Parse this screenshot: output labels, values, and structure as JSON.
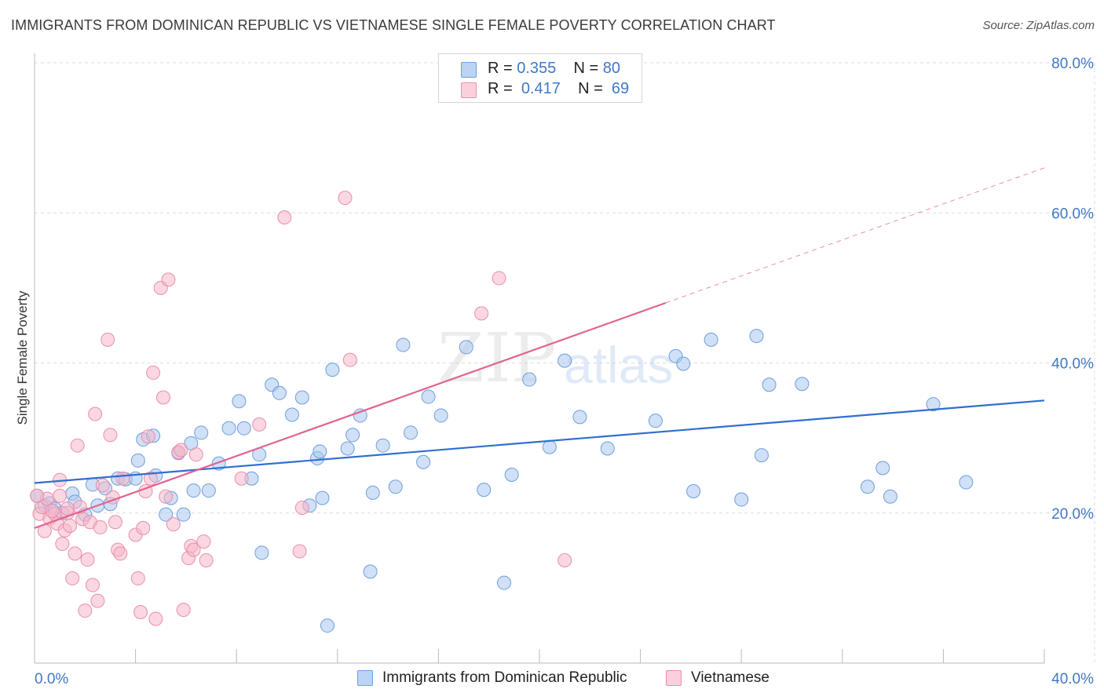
{
  "header": {
    "title": "IMMIGRANTS FROM DOMINICAN REPUBLIC VS VIETNAMESE SINGLE FEMALE POVERTY CORRELATION CHART",
    "source": "Source: ZipAtlas.com"
  },
  "watermark": {
    "zip": "ZIP",
    "atlas": "atlas"
  },
  "legend": {
    "series1": {
      "r_label": "R =",
      "r_value": "0.355",
      "n_label": "N =",
      "n_value": "80"
    },
    "series2": {
      "r_label": "R =",
      "r_value": "0.417",
      "n_label": "N =",
      "n_value": "69"
    }
  },
  "colors": {
    "blue_fill": "#a9c7ef",
    "blue_stroke": "#6d9fdc",
    "blue_line": "#2f6fcf",
    "pink_fill": "#f6b6c9",
    "pink_stroke": "#ea8fab",
    "pink_line": "#e0638f",
    "tick_text": "#3f78c8",
    "grid": "#dcdcdc"
  },
  "chart_data": {
    "type": "scatter",
    "title": "IMMIGRANTS FROM DOMINICAN REPUBLIC VS VIETNAMESE SINGLE FEMALE POVERTY CORRELATION CHART",
    "xlabel": "",
    "ylabel": "Single Female Poverty",
    "xlim": [
      0,
      40
    ],
    "ylim": [
      0,
      80
    ],
    "x_tick_labels": [
      "0.0%",
      "40.0%"
    ],
    "y_ticks": [
      20,
      40,
      60,
      80
    ],
    "y_tick_labels": [
      "20.0%",
      "40.0%",
      "60.0%",
      "80.0%"
    ],
    "grid": true,
    "legend_position": "top-center",
    "series": [
      {
        "name": "Immigrants from Dominican Republic",
        "color": "#a9c7ef",
        "trend": {
          "x": [
            0,
            40
          ],
          "y": [
            24.0,
            35.0
          ]
        },
        "points": [
          [
            0.1,
            22.3
          ],
          [
            0.4,
            21.0
          ],
          [
            0.6,
            21.3
          ],
          [
            0.8,
            20.6
          ],
          [
            1.1,
            20.0
          ],
          [
            1.5,
            22.6
          ],
          [
            1.6,
            21.5
          ],
          [
            2.0,
            19.8
          ],
          [
            2.3,
            23.8
          ],
          [
            2.5,
            21.0
          ],
          [
            2.8,
            23.3
          ],
          [
            3.0,
            21.2
          ],
          [
            3.3,
            24.6
          ],
          [
            3.6,
            24.5
          ],
          [
            4.0,
            24.6
          ],
          [
            4.1,
            27.0
          ],
          [
            4.3,
            29.8
          ],
          [
            4.7,
            30.3
          ],
          [
            4.8,
            25.0
          ],
          [
            5.2,
            19.8
          ],
          [
            5.4,
            22.0
          ],
          [
            5.7,
            28.0
          ],
          [
            5.9,
            19.8
          ],
          [
            6.2,
            29.3
          ],
          [
            6.3,
            23.0
          ],
          [
            6.6,
            30.7
          ],
          [
            6.9,
            23.0
          ],
          [
            7.3,
            26.6
          ],
          [
            7.7,
            31.3
          ],
          [
            8.1,
            34.9
          ],
          [
            8.3,
            31.3
          ],
          [
            8.6,
            24.6
          ],
          [
            8.9,
            27.8
          ],
          [
            9.0,
            14.7
          ],
          [
            9.4,
            37.1
          ],
          [
            9.7,
            36.0
          ],
          [
            10.2,
            33.1
          ],
          [
            10.6,
            35.4
          ],
          [
            10.9,
            21.0
          ],
          [
            11.2,
            27.3
          ],
          [
            11.3,
            28.2
          ],
          [
            11.4,
            22.0
          ],
          [
            11.6,
            5.0
          ],
          [
            11.8,
            39.1
          ],
          [
            12.4,
            28.6
          ],
          [
            12.6,
            30.4
          ],
          [
            12.9,
            33.0
          ],
          [
            13.3,
            12.2
          ],
          [
            13.4,
            22.7
          ],
          [
            13.8,
            29.0
          ],
          [
            14.3,
            23.5
          ],
          [
            14.6,
            42.4
          ],
          [
            14.9,
            30.7
          ],
          [
            15.4,
            26.8
          ],
          [
            15.6,
            35.5
          ],
          [
            16.1,
            33.0
          ],
          [
            17.1,
            42.1
          ],
          [
            17.8,
            23.1
          ],
          [
            18.6,
            10.7
          ],
          [
            18.9,
            25.1
          ],
          [
            19.6,
            37.8
          ],
          [
            20.4,
            28.8
          ],
          [
            21.0,
            40.3
          ],
          [
            21.6,
            32.8
          ],
          [
            22.7,
            28.6
          ],
          [
            24.6,
            32.3
          ],
          [
            25.4,
            40.9
          ],
          [
            25.7,
            39.9
          ],
          [
            26.1,
            22.9
          ],
          [
            26.8,
            43.1
          ],
          [
            28.0,
            21.8
          ],
          [
            28.6,
            43.6
          ],
          [
            28.8,
            27.7
          ],
          [
            29.1,
            37.1
          ],
          [
            30.4,
            37.2
          ],
          [
            33.0,
            23.5
          ],
          [
            33.6,
            26.0
          ],
          [
            33.9,
            22.2
          ],
          [
            35.6,
            34.5
          ],
          [
            36.9,
            24.1
          ]
        ]
      },
      {
        "name": "Vietnamese",
        "color": "#f6b6c9",
        "trend": {
          "x": [
            0,
            25
          ],
          "y": [
            18.0,
            48.0
          ]
        },
        "points": [
          [
            0.2,
            19.9
          ],
          [
            0.3,
            20.8
          ],
          [
            0.4,
            17.6
          ],
          [
            0.5,
            21.9
          ],
          [
            0.6,
            19.3
          ],
          [
            0.8,
            19.9
          ],
          [
            0.9,
            18.6
          ],
          [
            1.0,
            22.3
          ],
          [
            1.0,
            24.4
          ],
          [
            1.1,
            15.9
          ],
          [
            1.2,
            17.7
          ],
          [
            1.3,
            20.0
          ],
          [
            1.4,
            18.3
          ],
          [
            1.5,
            11.3
          ],
          [
            1.6,
            14.6
          ],
          [
            1.7,
            29.0
          ],
          [
            1.8,
            20.8
          ],
          [
            1.9,
            19.2
          ],
          [
            2.0,
            7.0
          ],
          [
            2.1,
            13.8
          ],
          [
            2.2,
            18.8
          ],
          [
            2.3,
            10.4
          ],
          [
            2.4,
            33.2
          ],
          [
            2.5,
            8.3
          ],
          [
            2.6,
            18.1
          ],
          [
            2.7,
            23.7
          ],
          [
            2.9,
            43.1
          ],
          [
            3.0,
            30.4
          ],
          [
            3.1,
            22.1
          ],
          [
            3.2,
            18.8
          ],
          [
            3.3,
            15.1
          ],
          [
            3.4,
            14.6
          ],
          [
            3.5,
            24.6
          ],
          [
            4.0,
            17.1
          ],
          [
            4.1,
            11.3
          ],
          [
            4.2,
            6.8
          ],
          [
            4.3,
            18.0
          ],
          [
            4.4,
            22.9
          ],
          [
            4.5,
            30.2
          ],
          [
            4.6,
            24.6
          ],
          [
            4.7,
            38.7
          ],
          [
            4.8,
            5.9
          ],
          [
            5.0,
            50.0
          ],
          [
            5.1,
            35.4
          ],
          [
            5.2,
            22.2
          ],
          [
            5.3,
            51.1
          ],
          [
            5.5,
            18.5
          ],
          [
            5.7,
            28.1
          ],
          [
            5.8,
            28.4
          ],
          [
            5.9,
            7.1
          ],
          [
            6.1,
            14.0
          ],
          [
            6.2,
            15.6
          ],
          [
            6.3,
            15.1
          ],
          [
            6.4,
            27.8
          ],
          [
            6.7,
            16.2
          ],
          [
            6.8,
            13.7
          ],
          [
            8.2,
            24.6
          ],
          [
            8.9,
            31.8
          ],
          [
            9.9,
            59.4
          ],
          [
            10.5,
            14.9
          ],
          [
            10.6,
            20.7
          ],
          [
            12.3,
            62.0
          ],
          [
            12.5,
            40.4
          ],
          [
            17.7,
            46.6
          ],
          [
            18.4,
            51.3
          ],
          [
            21.0,
            13.7
          ],
          [
            0.1,
            22.3
          ],
          [
            0.7,
            20.3
          ],
          [
            1.3,
            20.6
          ]
        ]
      }
    ]
  },
  "x_axis": {
    "left_label": "0.0%",
    "right_label": "40.0%"
  },
  "y_axis": {
    "label": "Single Female Poverty",
    "ticks": [
      "20.0%",
      "40.0%",
      "60.0%",
      "80.0%"
    ]
  },
  "bottom_legend": {
    "item1": "Immigrants from Dominican Republic",
    "item2": "Vietnamese"
  }
}
